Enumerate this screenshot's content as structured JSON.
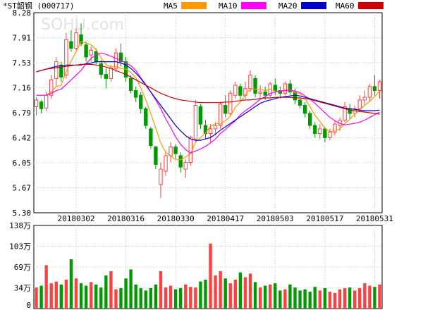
{
  "chart_data": {
    "type": "candlestick",
    "title": "*ST韶钢 (000717)",
    "watermark": "SOHU.com",
    "legend": [
      {
        "name": "MA5",
        "color": "#ff9900"
      },
      {
        "name": "MA10",
        "color": "#ff00ff"
      },
      {
        "name": "MA20",
        "color": "#0000cc"
      },
      {
        "name": "MA60",
        "color": "#cc0000"
      }
    ],
    "price_axis": {
      "ticks": [
        "8.28",
        "7.91",
        "7.53",
        "7.16",
        "6.79",
        "6.42",
        "6.05",
        "5.67",
        "5.30"
      ],
      "ylim": [
        5.3,
        8.28
      ]
    },
    "date_labels": [
      {
        "label": "20180302",
        "index": 8
      },
      {
        "label": "20180316",
        "index": 18
      },
      {
        "label": "20180330",
        "index": 28
      },
      {
        "label": "20180417",
        "index": 38
      },
      {
        "label": "20180503",
        "index": 48
      },
      {
        "label": "20180517",
        "index": 58
      },
      {
        "label": "20180531",
        "index": 68
      }
    ],
    "volume_axis": {
      "ticks": [
        "138万",
        "103万",
        "69万",
        "34万",
        "0"
      ],
      "ylim": [
        0,
        138
      ]
    },
    "up_color": "#ff4040",
    "down_color": "#009900",
    "candles": [
      [
        6.88,
        7.02,
        6.75,
        6.98
      ],
      [
        6.95,
        6.98,
        6.78,
        6.85
      ],
      [
        6.86,
        7.1,
        6.82,
        7.05
      ],
      [
        7.05,
        7.35,
        7.0,
        7.28
      ],
      [
        7.3,
        7.62,
        7.18,
        7.55
      ],
      [
        7.5,
        7.55,
        7.25,
        7.32
      ],
      [
        7.35,
        7.98,
        7.3,
        7.88
      ],
      [
        7.85,
        8.02,
        7.7,
        7.75
      ],
      [
        7.75,
        8.05,
        7.72,
        7.98
      ],
      [
        7.95,
        8.12,
        7.78,
        7.82
      ],
      [
        7.8,
        7.85,
        7.55,
        7.62
      ],
      [
        7.65,
        7.78,
        7.55,
        7.72
      ],
      [
        7.7,
        7.75,
        7.5,
        7.55
      ],
      [
        7.52,
        7.58,
        7.3,
        7.36
      ],
      [
        7.36,
        7.45,
        7.15,
        7.3
      ],
      [
        7.3,
        7.5,
        7.25,
        7.45
      ],
      [
        7.45,
        7.75,
        7.4,
        7.68
      ],
      [
        7.68,
        7.82,
        7.48,
        7.55
      ],
      [
        7.55,
        7.62,
        7.25,
        7.32
      ],
      [
        7.3,
        7.35,
        7.08,
        7.12
      ],
      [
        7.12,
        7.18,
        6.95,
        7.02
      ],
      [
        7.05,
        7.1,
        6.78,
        6.85
      ],
      [
        6.85,
        6.88,
        6.55,
        6.6
      ],
      [
        6.55,
        6.58,
        6.25,
        6.3
      ],
      [
        6.28,
        6.3,
        5.95,
        6.02
      ],
      [
        5.72,
        6.05,
        5.52,
        5.95
      ],
      [
        5.92,
        6.22,
        5.85,
        6.15
      ],
      [
        6.15,
        6.35,
        6.05,
        6.28
      ],
      [
        6.28,
        6.32,
        6.1,
        6.18
      ],
      [
        6.15,
        6.2,
        5.9,
        5.98
      ],
      [
        5.95,
        6.1,
        5.82,
        6.05
      ],
      [
        6.05,
        6.45,
        6.0,
        6.42
      ],
      [
        6.4,
        6.98,
        6.35,
        6.9
      ],
      [
        6.88,
        6.92,
        6.55,
        6.62
      ],
      [
        6.6,
        6.68,
        6.4,
        6.48
      ],
      [
        6.48,
        6.62,
        6.35,
        6.55
      ],
      [
        6.55,
        6.65,
        6.45,
        6.6
      ],
      [
        6.6,
        6.95,
        6.55,
        6.92
      ],
      [
        6.9,
        7.05,
        6.72,
        6.78
      ],
      [
        6.78,
        7.12,
        6.75,
        7.08
      ],
      [
        7.05,
        7.25,
        7.0,
        7.2
      ],
      [
        7.18,
        7.22,
        6.98,
        7.05
      ],
      [
        7.05,
        7.25,
        7.0,
        7.15
      ],
      [
        7.15,
        7.42,
        7.1,
        7.35
      ],
      [
        7.3,
        7.35,
        7.02,
        7.08
      ],
      [
        7.08,
        7.2,
        7.0,
        7.1
      ],
      [
        7.1,
        7.18,
        6.98,
        7.05
      ],
      [
        7.05,
        7.25,
        7.02,
        7.22
      ],
      [
        7.2,
        7.3,
        7.05,
        7.12
      ],
      [
        7.12,
        7.18,
        7.0,
        7.08
      ],
      [
        7.08,
        7.25,
        7.05,
        7.22
      ],
      [
        7.22,
        7.28,
        7.05,
        7.1
      ],
      [
        7.1,
        7.15,
        6.92,
        6.98
      ],
      [
        6.98,
        7.02,
        6.85,
        6.9
      ],
      [
        6.9,
        6.95,
        6.72,
        6.78
      ],
      [
        6.78,
        6.82,
        6.55,
        6.6
      ],
      [
        6.6,
        6.65,
        6.42,
        6.48
      ],
      [
        6.48,
        6.62,
        6.4,
        6.55
      ],
      [
        6.55,
        6.58,
        6.35,
        6.42
      ],
      [
        6.42,
        6.55,
        6.38,
        6.5
      ],
      [
        6.5,
        6.68,
        6.45,
        6.62
      ],
      [
        6.6,
        6.72,
        6.52,
        6.68
      ],
      [
        6.68,
        6.95,
        6.65,
        6.88
      ],
      [
        6.85,
        6.92,
        6.7,
        6.78
      ],
      [
        6.78,
        6.9,
        6.72,
        6.85
      ],
      [
        6.85,
        7.05,
        6.8,
        6.98
      ],
      [
        6.98,
        7.12,
        6.9,
        7.02
      ],
      [
        7.02,
        7.22,
        6.95,
        7.18
      ],
      [
        7.18,
        7.35,
        7.05,
        7.12
      ],
      [
        7.12,
        7.28,
        7.0,
        7.25
      ]
    ],
    "volumes": [
      35,
      38,
      72,
      42,
      45,
      40,
      48,
      82,
      50,
      42,
      38,
      44,
      40,
      35,
      55,
      62,
      32,
      34,
      50,
      65,
      40,
      34,
      30,
      34,
      40,
      62,
      35,
      38,
      32,
      34,
      40,
      36,
      35,
      45,
      48,
      108,
      55,
      62,
      50,
      42,
      48,
      60,
      52,
      58,
      44,
      35,
      38,
      40,
      42,
      30,
      32,
      40,
      35,
      30,
      32,
      28,
      36,
      30,
      34,
      28,
      26,
      32,
      34,
      35,
      30,
      34,
      42,
      38,
      36,
      40
    ],
    "ma_values": {
      "MA5": [
        7.05,
        7.05,
        7.05,
        7.1,
        7.18,
        7.2,
        7.4,
        7.56,
        7.7,
        7.85,
        7.83,
        7.8,
        7.73,
        7.61,
        7.51,
        7.47,
        7.48,
        7.45,
        7.44,
        7.39,
        7.31,
        7.16,
        6.98,
        6.78,
        6.56,
        6.34,
        6.2,
        6.15,
        6.09,
        6.09,
        6.13,
        6.18,
        6.35,
        6.42,
        6.49,
        6.59,
        6.63,
        6.62,
        6.67,
        6.74,
        6.87,
        6.95,
        7.06,
        7.14,
        7.14,
        7.14,
        7.12,
        7.14,
        7.11,
        7.11,
        7.13,
        7.13,
        7.09,
        7.07,
        7.0,
        6.88,
        6.75,
        6.66,
        6.56,
        6.51,
        6.52,
        6.55,
        6.63,
        6.69,
        6.77,
        6.83,
        6.9,
        6.96,
        7.03,
        7.11
      ],
      "MA10": [
        7.05,
        7.05,
        7.05,
        7.08,
        7.12,
        7.14,
        7.21,
        7.28,
        7.35,
        7.42,
        7.52,
        7.6,
        7.65,
        7.68,
        7.66,
        7.63,
        7.6,
        7.57,
        7.53,
        7.49,
        7.42,
        7.31,
        7.21,
        7.1,
        6.98,
        6.85,
        6.7,
        6.57,
        6.43,
        6.32,
        6.24,
        6.19,
        6.22,
        6.25,
        6.29,
        6.34,
        6.4,
        6.48,
        6.54,
        6.61,
        6.67,
        6.76,
        6.82,
        6.87,
        6.93,
        6.99,
        7.03,
        7.08,
        7.1,
        7.11,
        7.12,
        7.13,
        7.11,
        7.09,
        7.04,
        6.99,
        6.93,
        6.86,
        6.79,
        6.72,
        6.67,
        6.63,
        6.61,
        6.62,
        6.63,
        6.65,
        6.68,
        6.72,
        6.76,
        6.8
      ],
      "MA20": [
        7.4,
        7.42,
        7.44,
        7.46,
        7.48,
        7.49,
        7.5,
        7.5,
        7.5,
        7.5,
        7.52,
        7.53,
        7.55,
        7.55,
        7.55,
        7.55,
        7.55,
        7.53,
        7.5,
        7.45,
        7.38,
        7.3,
        7.2,
        7.1,
        7.0,
        6.9,
        6.8,
        6.7,
        6.6,
        6.52,
        6.45,
        6.4,
        6.38,
        6.38,
        6.4,
        6.42,
        6.47,
        6.53,
        6.58,
        6.63,
        6.68,
        6.73,
        6.78,
        6.83,
        6.88,
        6.93,
        6.96,
        6.98,
        7.0,
        7.02,
        7.03,
        7.04,
        7.05,
        7.04,
        7.02,
        7.0,
        6.98,
        6.96,
        6.94,
        6.92,
        6.9,
        6.88,
        6.86,
        6.85,
        6.84,
        6.83,
        6.82,
        6.82,
        6.82,
        6.83
      ],
      "MA60": [
        7.4,
        7.42,
        7.44,
        7.45,
        7.46,
        7.47,
        7.48,
        7.49,
        7.5,
        7.51,
        7.51,
        7.51,
        7.5,
        7.49,
        7.47,
        7.45,
        7.42,
        7.39,
        7.36,
        7.32,
        7.28,
        7.24,
        7.2,
        7.16,
        7.12,
        7.08,
        7.05,
        7.02,
        7.0,
        6.98,
        6.97,
        6.96,
        6.95,
        6.94,
        6.94,
        6.94,
        6.94,
        6.94,
        6.95,
        6.95,
        6.96,
        6.97,
        6.98,
        6.98,
        6.99,
        7.0,
        7.01,
        7.01,
        7.02,
        7.02,
        7.02,
        7.02,
        7.01,
        7.01,
        7.0,
        6.99,
        6.97,
        6.95,
        6.93,
        6.91,
        6.89,
        6.87,
        6.85,
        6.83,
        6.82,
        6.81,
        6.8,
        6.79,
        6.78,
        6.77
      ]
    }
  }
}
